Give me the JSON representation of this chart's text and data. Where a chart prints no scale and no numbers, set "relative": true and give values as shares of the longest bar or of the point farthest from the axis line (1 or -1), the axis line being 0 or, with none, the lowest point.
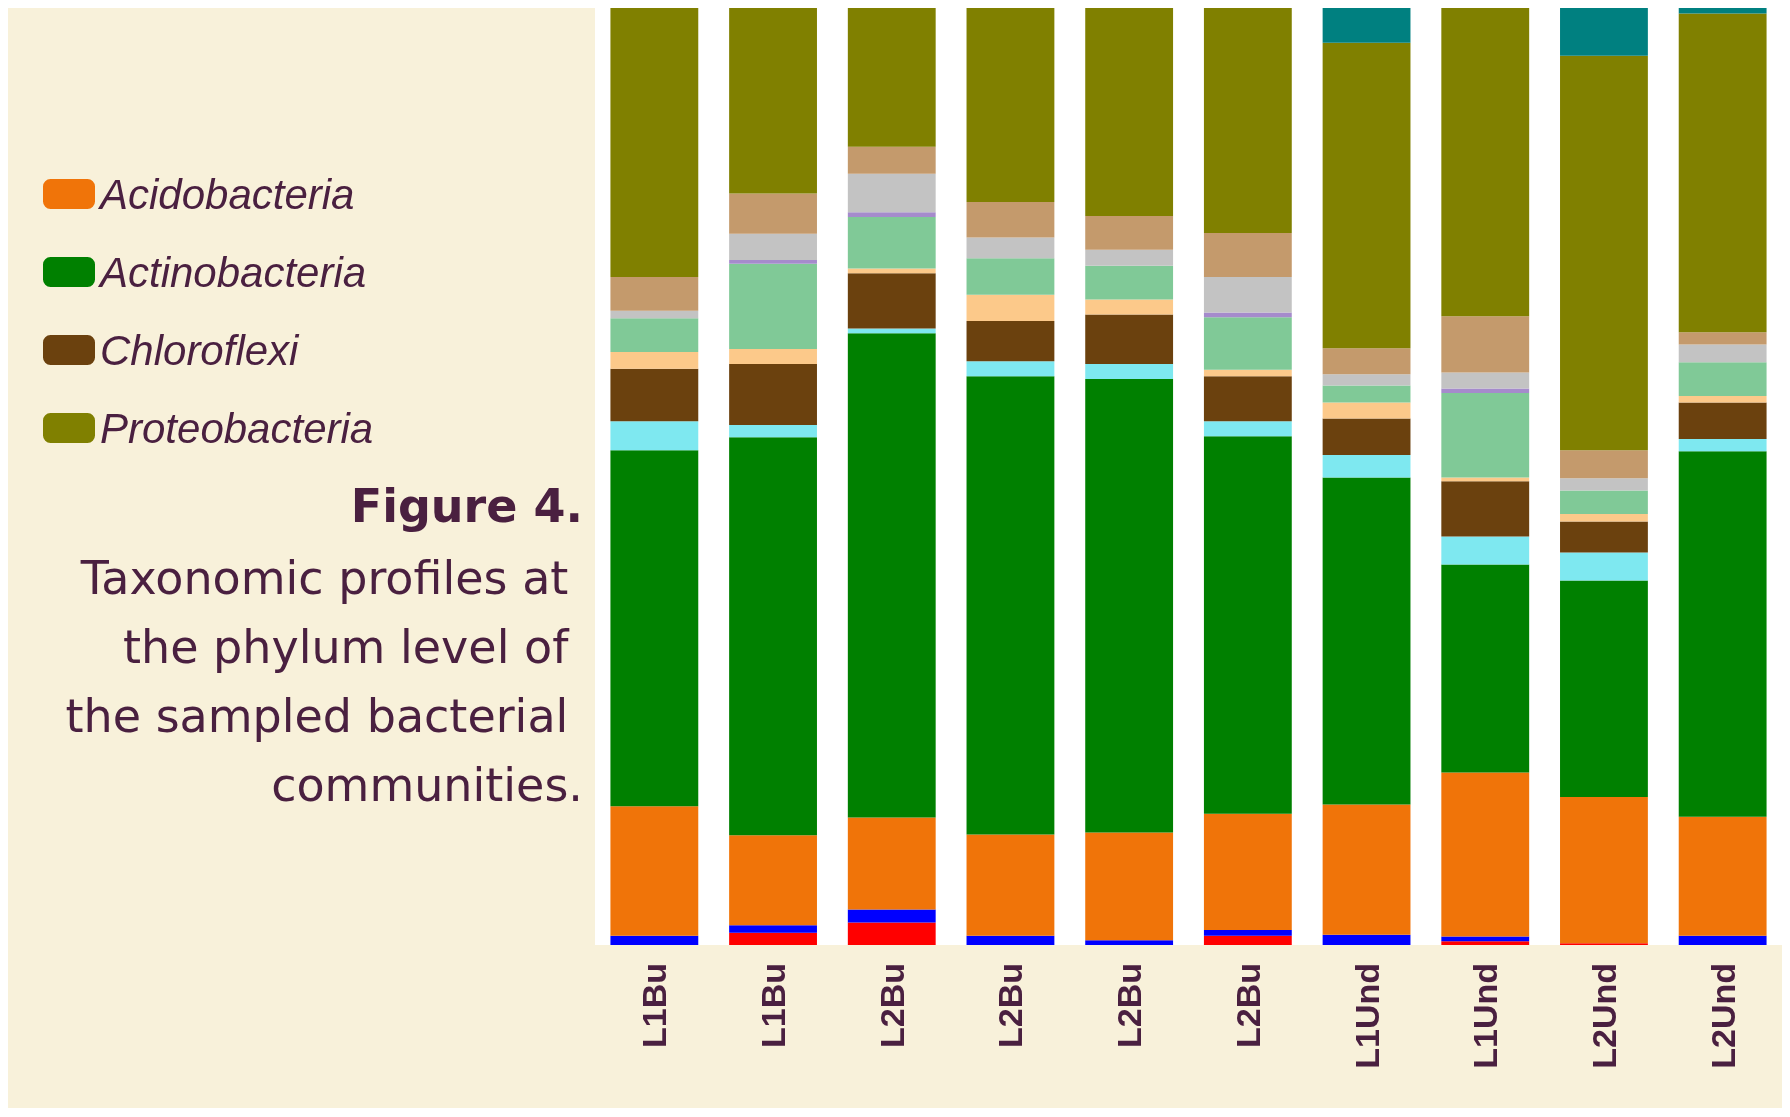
{
  "chart_data": {
    "type": "bar",
    "title": "Figure 4.",
    "subtitle": "Taxonomic profiles at the phylum level of the sampled bacterial communities.",
    "relative": true,
    "stacked": true,
    "legend": "left",
    "categories": [
      "L1Bu",
      "L1Bu",
      "L2Bu",
      "L2Bu",
      "L2Bu",
      "L2Bu",
      "L1Und",
      "L1Und",
      "L2Und",
      "L2Und"
    ],
    "series": [
      {
        "color": "#ff0000",
        "values": [
          0,
          0.013,
          0.024,
          0,
          0,
          0.01,
          0,
          0.004,
          0.002,
          0
        ]
      },
      {
        "color": "#0000ff",
        "values": [
          0.01,
          0.008,
          0.014,
          0.01,
          0.005,
          0.006,
          0.011,
          0.005,
          0,
          0.01
        ]
      },
      {
        "name": "Acidobacteria",
        "color": "#f07409",
        "values": [
          0.138,
          0.096,
          0.098,
          0.108,
          0.115,
          0.124,
          0.139,
          0.175,
          0.156,
          0.127
        ]
      },
      {
        "name": "Actinobacteria",
        "color": "#008000",
        "values": [
          0.38,
          0.425,
          0.517,
          0.489,
          0.484,
          0.403,
          0.349,
          0.222,
          0.231,
          0.39
        ]
      },
      {
        "color": "#7ee8f0",
        "values": [
          0.031,
          0.013,
          0.005,
          0.016,
          0.016,
          0.016,
          0.024,
          0.03,
          0.03,
          0.013
        ]
      },
      {
        "name": "Chloroflexi",
        "color": "#6b410e",
        "values": [
          0.056,
          0.065,
          0.059,
          0.043,
          0.053,
          0.048,
          0.039,
          0.059,
          0.033,
          0.039
        ]
      },
      {
        "color": "#fcc98a",
        "values": [
          0.018,
          0.016,
          0.005,
          0.028,
          0.016,
          0.007,
          0.017,
          0.004,
          0.008,
          0.007
        ]
      },
      {
        "color": "#80c997",
        "values": [
          0.036,
          0.091,
          0.055,
          0.039,
          0.036,
          0.056,
          0.018,
          0.09,
          0.025,
          0.036
        ]
      },
      {
        "color": "#a58bcc",
        "values": [
          0,
          0.004,
          0.005,
          0,
          0,
          0.005,
          0,
          0.005,
          0,
          0
        ]
      },
      {
        "color": "#c3c3c3",
        "values": [
          0.008,
          0.028,
          0.041,
          0.022,
          0.017,
          0.038,
          0.012,
          0.017,
          0.013,
          0.019
        ]
      },
      {
        "color": "#c49a6c",
        "values": [
          0.036,
          0.043,
          0.029,
          0.038,
          0.036,
          0.047,
          0.028,
          0.06,
          0.03,
          0.013
        ]
      },
      {
        "name": "Proteobacteria",
        "color": "#808000",
        "values": [
          0.287,
          0.198,
          0.148,
          0.207,
          0.222,
          0.24,
          0.326,
          0.329,
          0.421,
          0.34
        ]
      },
      {
        "color": "#008080",
        "values": [
          0,
          0,
          0,
          0,
          0,
          0,
          0.037,
          0,
          0.051,
          0.006
        ]
      }
    ]
  }
}
